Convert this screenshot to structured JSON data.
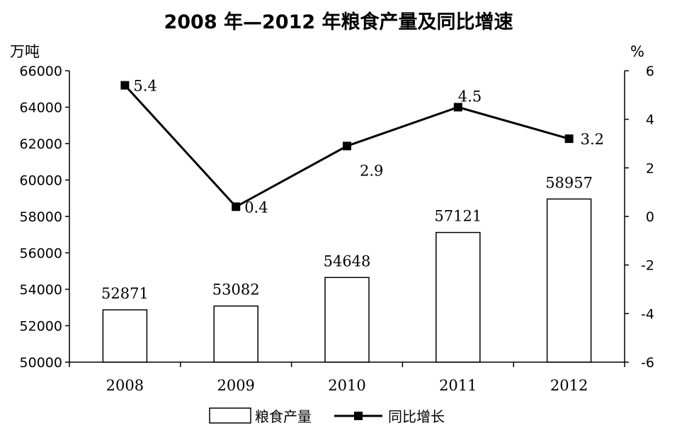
{
  "chart_data": {
    "type": "bar+line",
    "title": "2008 年—2012 年粮食产量及同比增速",
    "categories": [
      "2008",
      "2009",
      "2010",
      "2011",
      "2012"
    ],
    "y_left": {
      "unit": "万吨",
      "ylim": [
        50000,
        66000
      ],
      "ticks": [
        "50000",
        "52000",
        "54000",
        "56000",
        "58000",
        "60000",
        "62000",
        "64000",
        "66000"
      ]
    },
    "y_right": {
      "unit": "%",
      "ylim": [
        -6,
        6
      ],
      "ticks": [
        "-6",
        "-4",
        "-2",
        "0",
        "2",
        "4",
        "6"
      ]
    },
    "series": [
      {
        "name": "粮食产量",
        "type": "bar",
        "axis": "left",
        "values": [
          52871,
          53082,
          54648,
          57121,
          58957
        ],
        "labels": [
          "52871",
          "53082",
          "54648",
          "57121",
          "58957"
        ]
      },
      {
        "name": "同比增长",
        "type": "line",
        "axis": "right",
        "values": [
          5.4,
          0.4,
          2.9,
          4.5,
          3.2
        ],
        "labels": [
          "5.4",
          "0.4",
          "2.9",
          "4.5",
          "3.2"
        ]
      }
    ],
    "legend": "bottom",
    "grid": false,
    "colors": {
      "bar_fill": "#ffffff",
      "bar_stroke": "#000000",
      "line": "#000000",
      "marker": "#000000"
    }
  }
}
